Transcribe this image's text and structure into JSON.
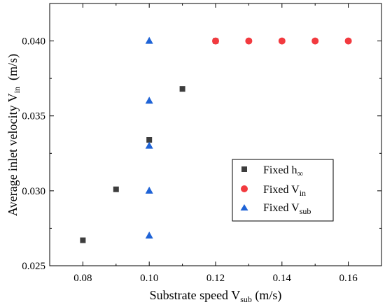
{
  "chart_data": {
    "type": "scatter",
    "xlabel": {
      "main": "Substrate speed V",
      "sub": "sub",
      "unit": " (m/s)"
    },
    "ylabel": {
      "main": "Average inlet velocity V",
      "sub": "in",
      "unit": "  (m/s)"
    },
    "xlim": [
      0.07,
      0.17
    ],
    "ylim": [
      0.025,
      0.0425
    ],
    "x_ticks": [
      0.08,
      0.1,
      0.12,
      0.14,
      0.16
    ],
    "x_tick_labels": [
      "0.08",
      "0.10",
      "0.12",
      "0.14",
      "0.16"
    ],
    "y_ticks": [
      0.025,
      0.03,
      0.035,
      0.04
    ],
    "y_tick_labels": [
      "0.025",
      "0.030",
      "0.035",
      "0.040"
    ],
    "grid": false,
    "legend_position": "center-right",
    "series": [
      {
        "name": {
          "main": "Fixed h",
          "sub": "∞"
        },
        "marker": "square",
        "color": "#3d3d3d",
        "points": [
          [
            0.08,
            0.0267
          ],
          [
            0.09,
            0.0301
          ],
          [
            0.1,
            0.0334
          ],
          [
            0.11,
            0.0368
          ],
          [
            0.12,
            0.04
          ]
        ]
      },
      {
        "name": {
          "main": "Fixed V",
          "sub": "in"
        },
        "marker": "circle",
        "color": "#f23a3f",
        "points": [
          [
            0.12,
            0.04
          ],
          [
            0.13,
            0.04
          ],
          [
            0.14,
            0.04
          ],
          [
            0.15,
            0.04
          ],
          [
            0.16,
            0.04
          ]
        ]
      },
      {
        "name": {
          "main": "Fixed V",
          "sub": "sub"
        },
        "marker": "triangle",
        "color": "#1f63d6",
        "points": [
          [
            0.1,
            0.027
          ],
          [
            0.1,
            0.03
          ],
          [
            0.1,
            0.033
          ],
          [
            0.1,
            0.036
          ],
          [
            0.1,
            0.04
          ]
        ]
      }
    ]
  }
}
